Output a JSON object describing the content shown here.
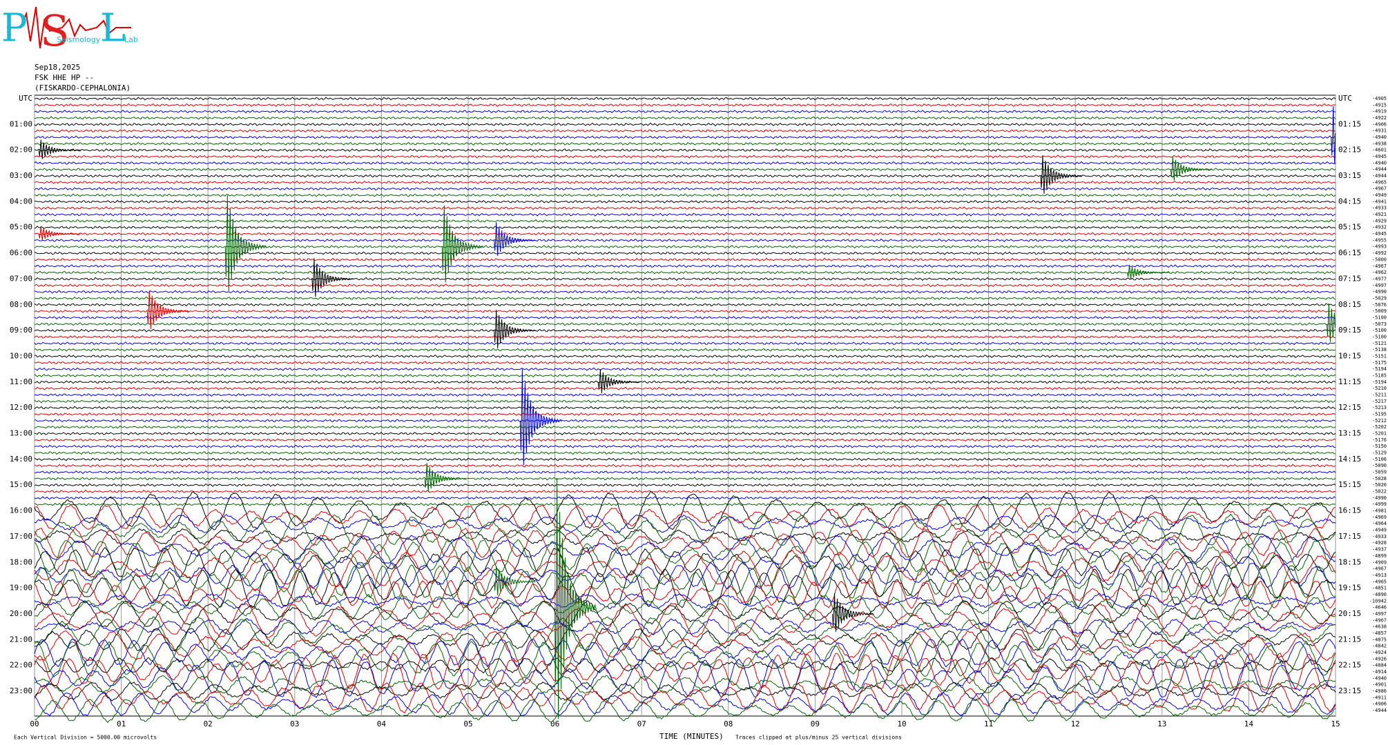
{
  "header": {
    "logo": {
      "p": "P",
      "s": "S",
      "l": "L",
      "seismology": "Seismology",
      "lab": "Lab"
    },
    "date": "Sep18,2025",
    "station": "FSK HHE HP --",
    "location": "(FISKARDO-CEPHALONIA)"
  },
  "chart_data": {
    "type": "helicorder",
    "trace_colors": [
      "#000000",
      "#e00000",
      "#0000e0",
      "#006400"
    ],
    "rows": 96,
    "left_labels": [
      "UTC",
      "01:00",
      "02:00",
      "03:00",
      "04:00",
      "05:00",
      "06:00",
      "07:00",
      "08:00",
      "09:00",
      "10:00",
      "11:00",
      "12:00",
      "13:00",
      "14:00",
      "15:00",
      "16:00",
      "17:00",
      "18:00",
      "19:00",
      "20:00",
      "21:00",
      "22:00",
      "23:00"
    ],
    "right_labels": [
      "UTC",
      "01:15",
      "02:15",
      "03:15",
      "04:15",
      "05:15",
      "06:15",
      "07:15",
      "08:15",
      "09:15",
      "10:15",
      "11:15",
      "12:15",
      "13:15",
      "14:15",
      "15:15",
      "16:15",
      "17:15",
      "18:15",
      "19:15",
      "20:15",
      "21:15",
      "22:15",
      "23:15"
    ],
    "offsets": [
      -4905,
      -4915,
      -4919,
      -4922,
      -4906,
      -4931,
      -4940,
      -4938,
      -4601,
      -4945,
      -4940,
      -4944,
      -4944,
      -4965,
      -4967,
      -4949,
      -4941,
      -4933,
      -4921,
      -4929,
      -4932,
      -4945,
      -4955,
      -4993,
      -4992,
      -5000,
      -4967,
      -4962,
      -4977,
      -4997,
      -4990,
      -5029,
      -5076,
      -5009,
      -5100,
      -5073,
      -5100,
      -5100,
      -5121,
      -5138,
      -5151,
      -5175,
      -5194,
      -5185,
      -5194,
      -5210,
      -5211,
      -5217,
      -5213,
      -5195,
      -5212,
      -5202,
      -5201,
      -5176,
      -5150,
      -5129,
      -5106,
      -5090,
      -5059,
      -5028,
      -5020,
      -5022,
      -4990,
      -4999,
      -4981,
      -4969,
      -4964,
      -4949,
      -4933,
      -4928,
      -4937,
      -4899,
      -4909,
      -4967,
      -4913,
      -4965,
      -4851,
      -4890,
      -10942,
      -4646,
      -4997,
      -4967,
      -4638,
      -4857,
      -4875,
      -4842,
      -4924,
      -4926,
      -4884,
      -4914,
      -4940,
      -4901,
      -4986,
      -4911,
      -4906,
      -4944
    ],
    "xlim": [
      0,
      15
    ],
    "xticks": [
      {
        "value": 0,
        "label": "00"
      },
      {
        "value": 1,
        "label": "01"
      },
      {
        "value": 2,
        "label": "02"
      },
      {
        "value": 3,
        "label": "03"
      },
      {
        "value": 4,
        "label": "04"
      },
      {
        "value": 5,
        "label": "05"
      },
      {
        "value": 6,
        "label": "06"
      },
      {
        "value": 7,
        "label": "07"
      },
      {
        "value": 8,
        "label": "08"
      },
      {
        "value": 9,
        "label": "09"
      },
      10,
      11,
      12,
      13,
      14,
      15
    ],
    "x_label": "TIME (MINUTES)",
    "scale_note": "Each Vertical Division = 5000.00 microvolts",
    "clip_note": "Traces clipped at plus/minus 25 vertical divisions",
    "long_period": {
      "from_row": 64,
      "amplitude": 2.5
    },
    "events": [
      {
        "row": 8,
        "minute": 0.05,
        "amplitude": 2
      },
      {
        "row": 21,
        "minute": 0.05,
        "amplitude": 1.5
      },
      {
        "row": 23,
        "minute": 2.2,
        "amplitude": 10
      },
      {
        "row": 23,
        "minute": 4.7,
        "amplitude": 8
      },
      {
        "row": 22,
        "minute": 5.3,
        "amplitude": 3.5
      },
      {
        "row": 28,
        "minute": 3.2,
        "amplitude": 4
      },
      {
        "row": 33,
        "minute": 1.3,
        "amplitude": 4
      },
      {
        "row": 36,
        "minute": 5.3,
        "amplitude": 4
      },
      {
        "row": 44,
        "minute": 6.5,
        "amplitude": 2.5
      },
      {
        "row": 50,
        "minute": 5.6,
        "amplitude": 10
      },
      {
        "row": 59,
        "minute": 4.5,
        "amplitude": 3
      },
      {
        "row": 75,
        "minute": 5.3,
        "amplitude": 3
      },
      {
        "row": 79,
        "minute": 6.0,
        "amplitude": 25
      },
      {
        "row": 80,
        "minute": 9.2,
        "amplitude": 4
      },
      {
        "row": 12,
        "minute": 11.6,
        "amplitude": 4
      },
      {
        "row": 11,
        "minute": 13.1,
        "amplitude": 2.5
      },
      {
        "row": 35,
        "minute": 14.9,
        "amplitude": 4
      },
      {
        "row": 6,
        "minute": 14.95,
        "amplitude": 6
      },
      {
        "row": 27,
        "minute": 12.6,
        "amplitude": 1.5
      }
    ]
  }
}
